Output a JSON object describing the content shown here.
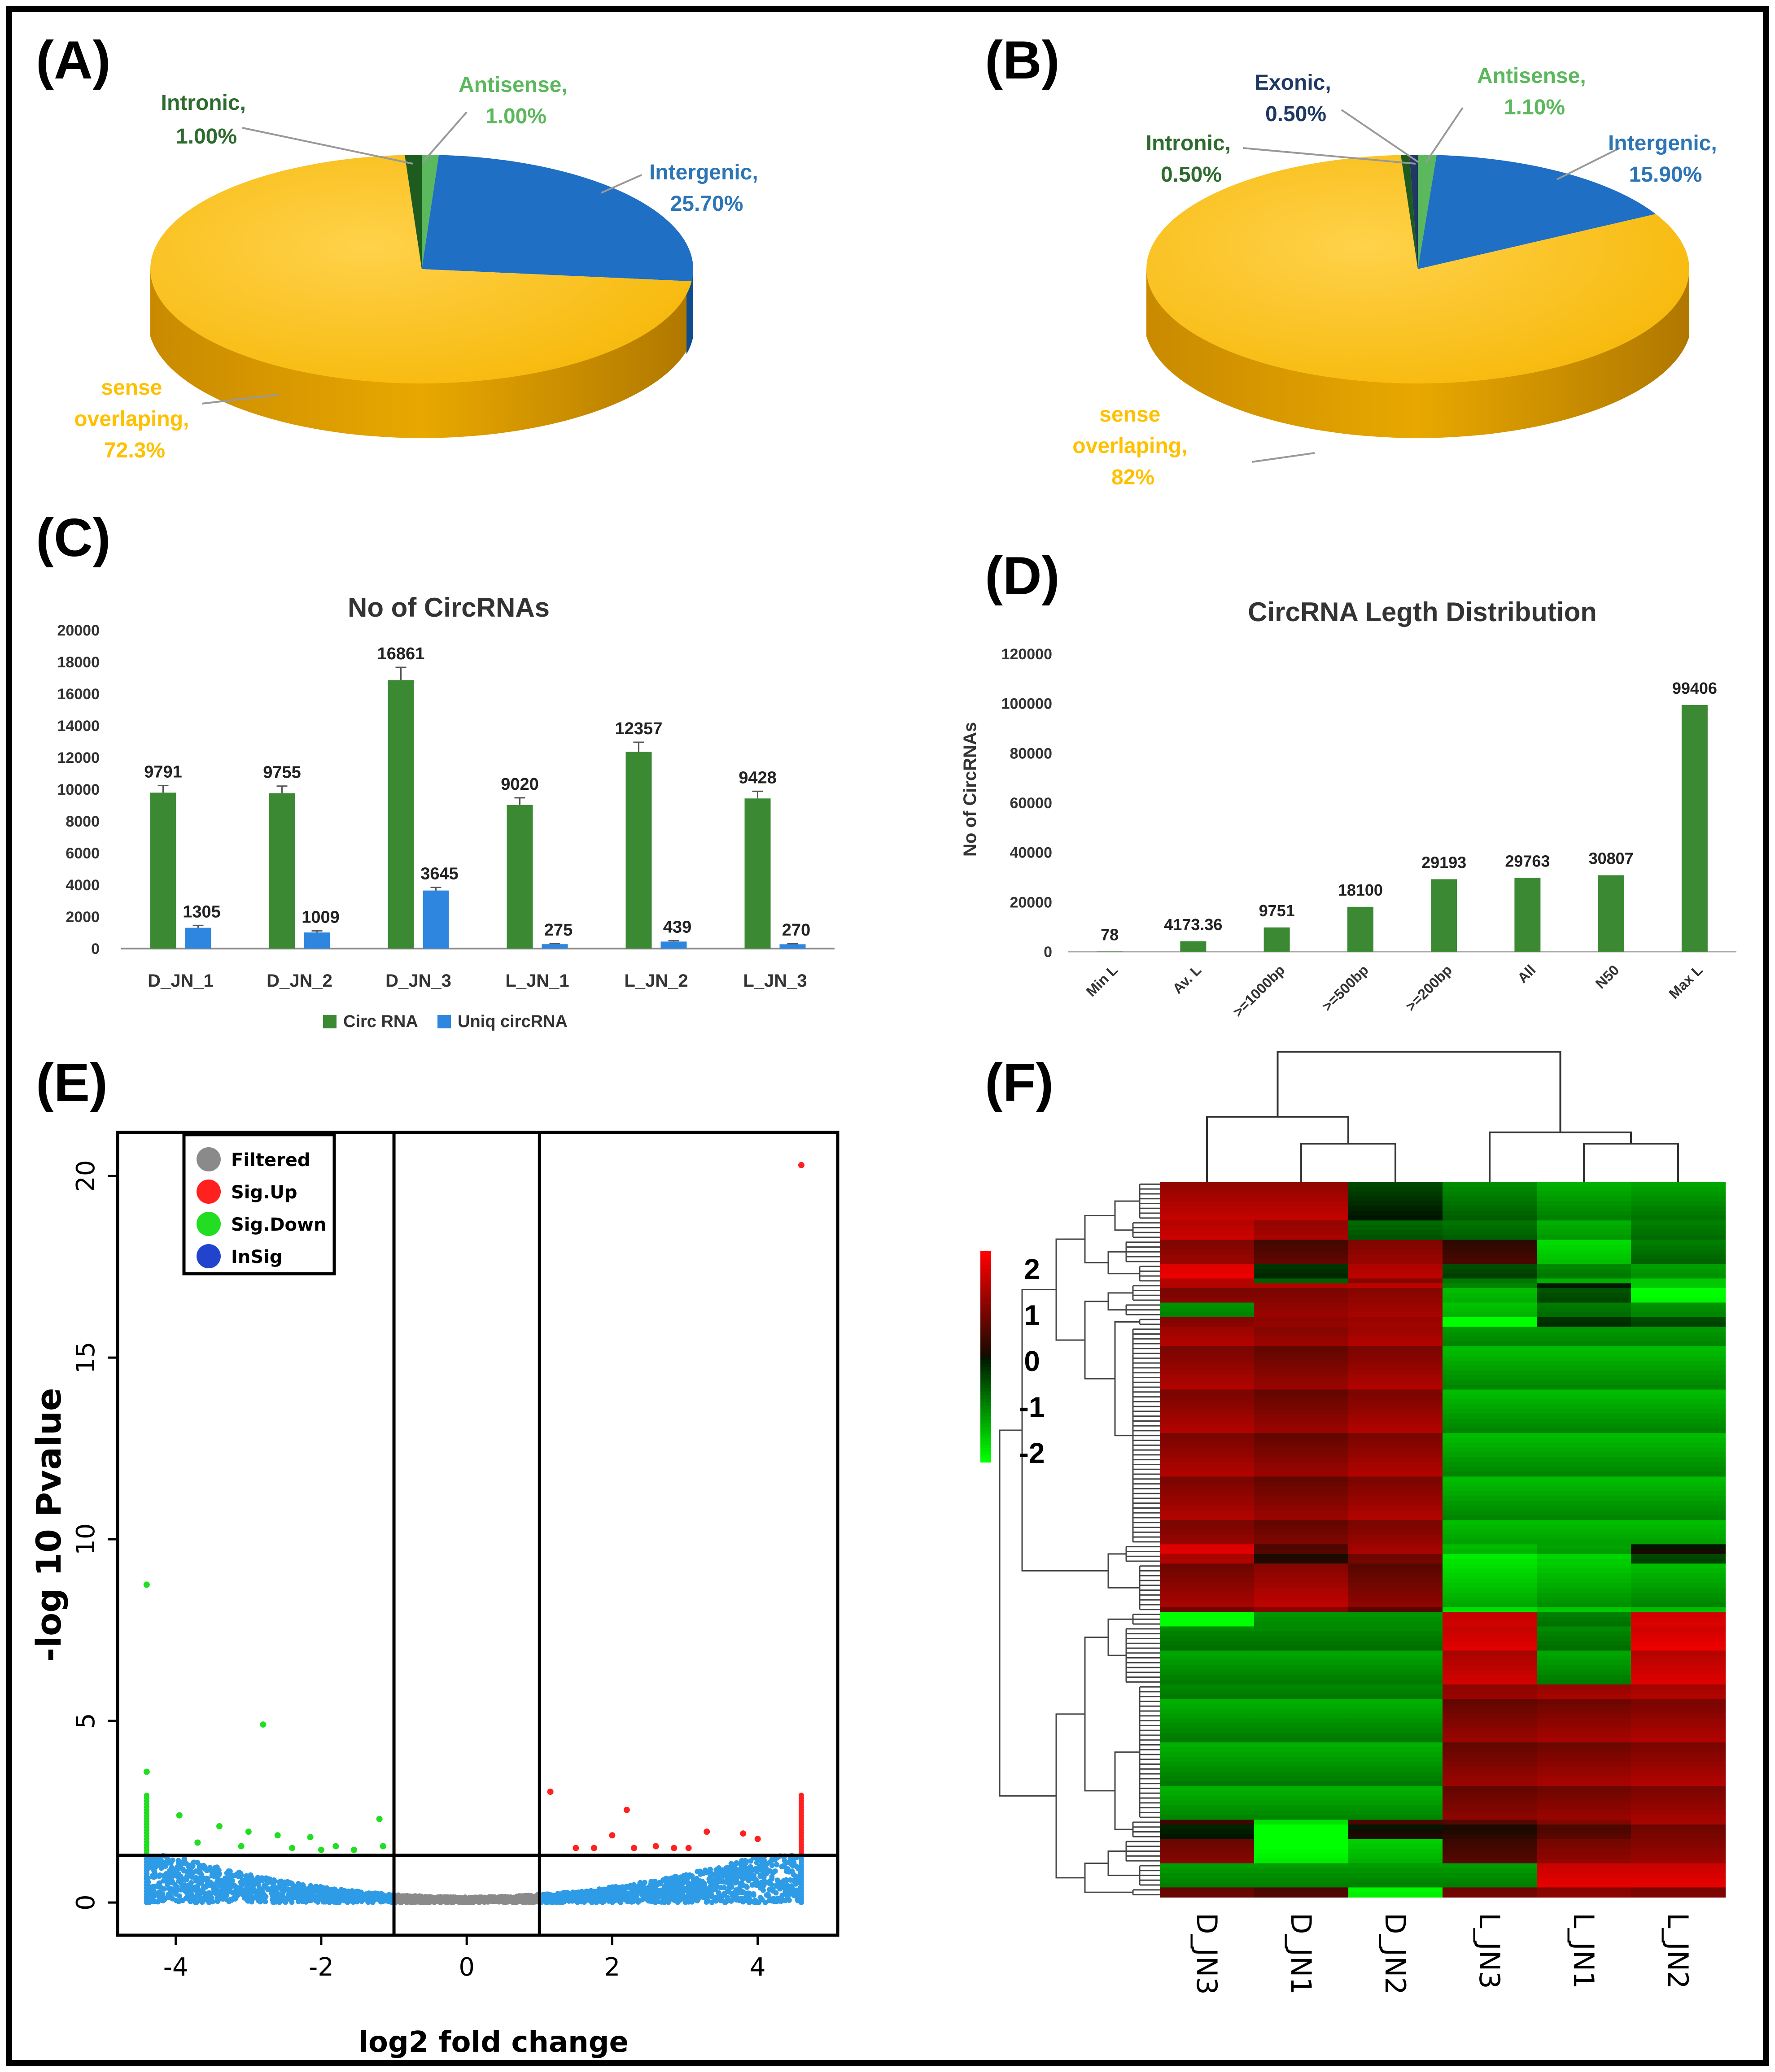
{
  "panels": {
    "A": "(A)",
    "B": "(B)",
    "C": "(C)",
    "D": "(D)",
    "E": "(E)",
    "F": "(F)"
  },
  "colors": {
    "sense": "#FFC000",
    "intergenic": "#1F6FC5",
    "intronic": "#1E5B1E",
    "antisense": "#5CB85C",
    "exonic": "#1F3864",
    "circ": "#3B8A33",
    "uniq": "#2E86DE"
  },
  "chart_data": [
    {
      "id": "A",
      "type": "pie",
      "slices": [
        {
          "name": "Intergenic,",
          "value_label": "25.70%",
          "value": 25.7,
          "color": "#1F6FC5",
          "label_color": "#2E75B6"
        },
        {
          "name": "sense overlaping,",
          "value_label": "72.3%",
          "value": 72.3,
          "color": "#FFC000",
          "label_color": "#FFC000"
        },
        {
          "name": "Intronic,",
          "value_label": "1.00%",
          "value": 1.0,
          "color": "#1E5B1E",
          "label_color": "#2E6B2E"
        },
        {
          "name": "Antisense,",
          "value_label": "1.00%",
          "value": 1.0,
          "color": "#5CB85C",
          "label_color": "#5CB85C"
        }
      ],
      "labels": {
        "intronic": [
          "Intronic,",
          "1.00%"
        ],
        "antisense": [
          "Antisense,",
          "1.00%"
        ],
        "intergenic": [
          "Intergenic,",
          "25.70%"
        ],
        "sense": [
          "sense",
          "overlaping,",
          "72.3%"
        ]
      }
    },
    {
      "id": "B",
      "type": "pie",
      "slices": [
        {
          "name": "Intergenic,",
          "value_label": "15.90%",
          "value": 15.9,
          "color": "#1F6FC5"
        },
        {
          "name": "sense overlaping,",
          "value_label": "82%",
          "value": 82.0,
          "color": "#FFC000"
        },
        {
          "name": "Intronic,",
          "value_label": "0.50%",
          "value": 0.5,
          "color": "#1E5B1E"
        },
        {
          "name": "Exonic,",
          "value_label": "0.50%",
          "value": 0.5,
          "color": "#1F3864"
        },
        {
          "name": "Antisense,",
          "value_label": "1.10%",
          "value": 1.1,
          "color": "#5CB85C"
        }
      ],
      "labels": {
        "exonic": [
          "Exonic,",
          "0.50%"
        ],
        "antisense": [
          "Antisense,",
          "1.10%"
        ],
        "intronic": [
          "Intronic,",
          "0.50%"
        ],
        "intergenic": [
          "Intergenic,",
          "15.90%"
        ],
        "sense": [
          "sense",
          "overlaping,",
          "82%"
        ]
      }
    },
    {
      "id": "C",
      "type": "bar",
      "title": "No of CircRNAs",
      "categories": [
        "D_JN_1",
        "D_JN_2",
        "D_JN_3",
        "L_JN_1",
        "L_JN_2",
        "L_JN_3"
      ],
      "series": [
        {
          "name": "Circ RNA",
          "values": [
            9791,
            9755,
            16861,
            9020,
            12357,
            9428
          ],
          "errors": [
            450,
            450,
            800,
            450,
            600,
            450
          ]
        },
        {
          "name": "Uniq circRNA",
          "values": [
            1305,
            1009,
            3645,
            275,
            439,
            270
          ],
          "errors": [
            150,
            100,
            200,
            40,
            50,
            40
          ]
        }
      ],
      "ylim": [
        0,
        20000
      ],
      "yticks": [
        0,
        2000,
        4000,
        6000,
        8000,
        10000,
        12000,
        14000,
        16000,
        18000,
        20000
      ],
      "legend": "bottom"
    },
    {
      "id": "D",
      "type": "bar",
      "title": "CircRNA Legth Distribution",
      "ylabel": "No of CircRNAs",
      "categories": [
        "Min L",
        "Av. L",
        ">=1000bp",
        ">=500bp",
        ">=200bp",
        "All",
        "N50",
        "Max L"
      ],
      "values": [
        78,
        4173.36,
        9751,
        18100,
        29193,
        29763,
        30807,
        99406
      ],
      "value_labels": [
        "78",
        "4173.36",
        "9751",
        "18100",
        "29193",
        "29763",
        "30807",
        "99406"
      ],
      "ylim": [
        0,
        120000
      ],
      "yticks": [
        0,
        20000,
        40000,
        60000,
        80000,
        100000,
        120000
      ]
    },
    {
      "id": "E",
      "type": "scatter",
      "xlabel": "log2 fold change",
      "ylabel": "-log 10 Pvalue",
      "xlim": [
        -4.8,
        5.1
      ],
      "ylim": [
        -0.9,
        21.2
      ],
      "xticks": [
        -4,
        -2,
        0,
        2,
        4
      ],
      "yticks": [
        0,
        5,
        10,
        15,
        20
      ],
      "thresholds": {
        "x": [
          -1,
          1
        ],
        "y": 1.3
      },
      "legend": [
        "Filtered",
        "Sig.Up",
        "Sig.Down",
        "InSig"
      ],
      "legend_colors": [
        "#8A8A8A",
        "#FF2020",
        "#22DD22",
        "#2244CC"
      ],
      "points_up": [
        [
          4.6,
          20.3
        ],
        [
          1.15,
          3.05
        ],
        [
          2.2,
          2.55
        ],
        [
          3.3,
          1.95
        ],
        [
          2.0,
          1.85
        ],
        [
          3.8,
          1.9
        ],
        [
          4.0,
          1.75
        ],
        [
          2.6,
          1.55
        ],
        [
          1.5,
          1.5
        ],
        [
          1.75,
          1.5
        ],
        [
          2.3,
          1.5
        ],
        [
          2.85,
          1.5
        ],
        [
          3.05,
          1.5
        ]
      ],
      "points_down": [
        [
          -4.4,
          8.75
        ],
        [
          -2.8,
          4.9
        ],
        [
          -4.4,
          3.6
        ],
        [
          -3.95,
          2.4
        ],
        [
          -3.4,
          2.1
        ],
        [
          -3.0,
          1.95
        ],
        [
          -2.6,
          1.85
        ],
        [
          -2.15,
          1.8
        ],
        [
          -3.7,
          1.65
        ],
        [
          -3.1,
          1.55
        ],
        [
          -2.4,
          1.5
        ],
        [
          -1.8,
          1.55
        ],
        [
          -1.55,
          1.45
        ],
        [
          -2.0,
          1.45
        ],
        [
          -1.2,
          2.3
        ],
        [
          -1.15,
          1.55
        ]
      ],
      "cloud": {
        "insig_range": [
          -4.4,
          4.6
        ],
        "filtered_range": [
          -1,
          1
        ],
        "max_y": 1.3
      }
    },
    {
      "id": "F",
      "type": "heatmap",
      "columns": [
        "D_JN3",
        "D_JN1",
        "D_JN2",
        "L_JN3",
        "L_JN1",
        "L_JN2"
      ],
      "color_scale": {
        "min": -2,
        "max": 2,
        "ticks": [
          "2",
          "1",
          "0",
          "-1",
          "-2"
        ]
      },
      "row_blocks": [
        {
          "rows": 8,
          "values": [
            1.3,
            1.3,
            -0.2,
            -0.8,
            -1.1,
            -1.0
          ]
        },
        {
          "rows": 4,
          "values": [
            1.5,
            1.2,
            -0.6,
            -0.7,
            -1.2,
            -0.8
          ]
        },
        {
          "rows": 5,
          "values": [
            0.9,
            0.4,
            0.9,
            0.2,
            -1.7,
            -0.9
          ]
        },
        {
          "rows": 4,
          "values": [
            1.6,
            -0.4,
            1.2,
            -0.6,
            -1.1,
            -1.3
          ]
        },
        {
          "rows": 4,
          "values": [
            1.1,
            1.1,
            1.2,
            -1.2,
            -0.3,
            -1.8
          ]
        },
        {
          "rows": 3,
          "values": [
            -0.9,
            1.2,
            1.3,
            -1.3,
            -0.7,
            -0.9
          ]
        },
        {
          "rows": 2,
          "values": [
            1.0,
            1.1,
            1.2,
            -2.0,
            -0.2,
            -0.4
          ]
        },
        {
          "rows": 45,
          "values": [
            1.1,
            0.9,
            1.1,
            -1.2,
            -1.2,
            -1.2
          ]
        },
        {
          "rows": 4,
          "values": [
            1.5,
            0.3,
            1.0,
            -1.6,
            -1.4,
            -0.2
          ]
        },
        {
          "rows": 10,
          "values": [
            1.0,
            1.2,
            0.8,
            -1.5,
            -1.3,
            -1.2
          ]
        },
        {
          "rows": 3,
          "values": [
            -2.0,
            -1.0,
            -1.0,
            1.6,
            -0.8,
            1.7
          ]
        },
        {
          "rows": 12,
          "values": [
            -1.0,
            -1.0,
            -1.0,
            1.5,
            -1.0,
            1.6
          ]
        },
        {
          "rows": 28,
          "values": [
            -1.1,
            -1.1,
            -1.1,
            0.9,
            1.0,
            1.1
          ]
        },
        {
          "rows": 4,
          "values": [
            0.1,
            -2.0,
            0.2,
            0.3,
            0.7,
            1.0
          ]
        },
        {
          "rows": 5,
          "values": [
            0.9,
            -1.9,
            -1.4,
            0.5,
            1.0,
            1.1
          ]
        },
        {
          "rows": 5,
          "values": [
            -1.1,
            -1.1,
            -1.1,
            -1.1,
            1.6,
            1.6
          ]
        },
        {
          "rows": 2,
          "values": [
            0.6,
            0.4,
            -2.0,
            0.7,
            0.9,
            0.8
          ]
        }
      ]
    }
  ]
}
